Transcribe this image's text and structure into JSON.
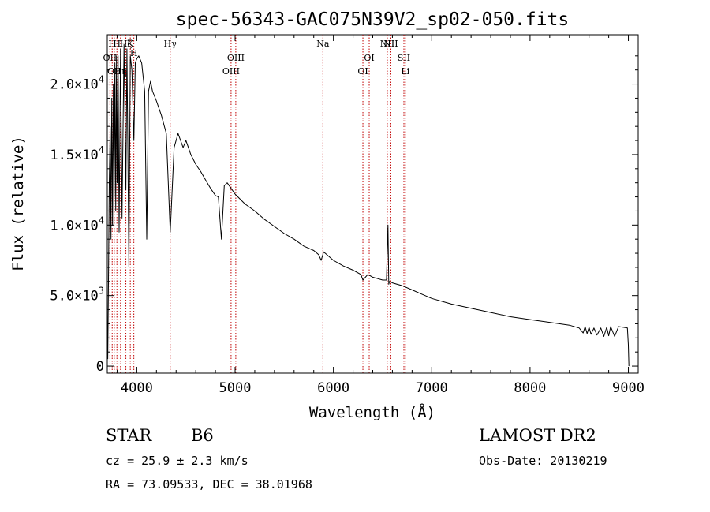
{
  "colors": {
    "axis": "#000000",
    "spectrum": "#000000",
    "line_marker": "#c00000",
    "background": "#ffffff"
  },
  "chart_data": {
    "type": "line",
    "title": "spec-56343-GAC075N39V2_sp02-050.fits",
    "xlabel": "Wavelength (Å)",
    "ylabel": "Flux (relative)",
    "xlim": [
      3700,
      9100
    ],
    "ylim": [
      -500,
      23500
    ],
    "xticks": [
      4000,
      5000,
      6000,
      7000,
      8000,
      9000
    ],
    "xtick_labels": [
      "4000",
      "5000",
      "6000",
      "7000",
      "8000",
      "9000"
    ],
    "yticks": [
      0,
      5000,
      10000,
      15000,
      20000
    ],
    "ytick_labels": [
      {
        "mant": "0",
        "exp": ""
      },
      {
        "mant": "5.0×10",
        "exp": "3"
      },
      {
        "mant": "1.0×10",
        "exp": "4"
      },
      {
        "mant": "1.5×10",
        "exp": "4"
      },
      {
        "mant": "2.0×10",
        "exp": "4"
      }
    ],
    "grid": false,
    "series": [
      {
        "x": [
          3705,
          3712,
          3720,
          3730,
          3738,
          3746,
          3754,
          3762,
          3770,
          3778,
          3786,
          3794,
          3800,
          3810,
          3820,
          3835,
          3850,
          3870,
          3889,
          3900,
          3920,
          3934,
          3950,
          3970,
          3985,
          4000,
          4020,
          4050,
          4080,
          4101,
          4120,
          4140,
          4160,
          4200,
          4250,
          4300,
          4340,
          4380,
          4420,
          4471,
          4500,
          4550,
          4600,
          4650,
          4700,
          4750,
          4800,
          4830,
          4861,
          4890,
          4920,
          4960,
          5000,
          5100,
          5200,
          5300,
          5400,
          5500,
          5600,
          5700,
          5800,
          5850,
          5875,
          5900,
          5950,
          6000,
          6100,
          6200,
          6280,
          6300,
          6350,
          6400,
          6450,
          6500,
          6540,
          6555,
          6563,
          6570,
          6600,
          6700,
          6800,
          6900,
          7000,
          7200,
          7400,
          7600,
          7800,
          8000,
          8200,
          8400,
          8500,
          8540,
          8560,
          8580,
          8600,
          8620,
          8650,
          8680,
          8720,
          8750,
          8780,
          8800,
          8820,
          8860,
          8900,
          8950,
          8990,
          9000,
          9005
        ],
        "y": [
          500,
          6000,
          13000,
          17000,
          9000,
          19000,
          10000,
          20000,
          12000,
          21500,
          11000,
          22000,
          13000,
          22000,
          9500,
          22500,
          10500,
          22800,
          12500,
          22500,
          7000,
          22000,
          21000,
          16000,
          21500,
          21800,
          22000,
          21500,
          19500,
          9000,
          19500,
          20200,
          19500,
          18800,
          17800,
          16500,
          9500,
          15500,
          16500,
          15500,
          16000,
          15000,
          14300,
          13800,
          13200,
          12600,
          12100,
          12000,
          9000,
          12800,
          13000,
          12600,
          12200,
          11500,
          11000,
          10400,
          9900,
          9400,
          9000,
          8500,
          8200,
          7900,
          7500,
          8100,
          7800,
          7500,
          7100,
          6800,
          6500,
          6100,
          6500,
          6300,
          6200,
          6100,
          6100,
          10000,
          5800,
          6000,
          5900,
          5700,
          5400,
          5100,
          4800,
          4400,
          4100,
          3800,
          3500,
          3300,
          3100,
          2900,
          2700,
          2350,
          2800,
          2300,
          2750,
          2250,
          2700,
          2200,
          2700,
          2100,
          2750,
          2150,
          2800,
          2100,
          2800,
          2750,
          2700,
          1500,
          0
        ]
      }
    ],
    "line_markers": [
      {
        "x": 3727,
        "label": "OII",
        "row": 2
      },
      {
        "x": 3750,
        "label": "H",
        "row": 0
      },
      {
        "x": 3771,
        "label": "OII",
        "row": 3
      },
      {
        "x": 3798,
        "label": "H",
        "row": 0
      },
      {
        "x": 3835,
        "label": "Hη",
        "row": 3
      },
      {
        "x": 3889,
        "label": "Hζ",
        "row": 0
      },
      {
        "x": 3934,
        "label": "K",
        "row": 0
      },
      {
        "x": 3970,
        "label": "H",
        "row": 1
      },
      {
        "x": 4340,
        "label": "Hγ",
        "row": 0
      },
      {
        "x": 4959,
        "label": "OIII",
        "row": 3
      },
      {
        "x": 5007,
        "label": "OIII",
        "row": 2
      },
      {
        "x": 5893,
        "label": "Na",
        "row": 0
      },
      {
        "x": 6300,
        "label": "OI",
        "row": 3
      },
      {
        "x": 6364,
        "label": "OI",
        "row": 2
      },
      {
        "x": 6548,
        "label": "NII",
        "row": 0
      },
      {
        "x": 6584,
        "label": "NII",
        "row": 0
      },
      {
        "x": 6717,
        "label": "SII",
        "row": 2
      },
      {
        "x": 6731,
        "label": "Li",
        "row": 3
      }
    ]
  },
  "info": {
    "obj_class": "STAR",
    "subclass": "B6",
    "survey": "LAMOST DR2",
    "cz": "cz = 25.9 ± 2.3 km/s",
    "obs_date": "Obs-Date: 20130219",
    "coords": "RA =  73.09533, DEC =  38.01968"
  }
}
